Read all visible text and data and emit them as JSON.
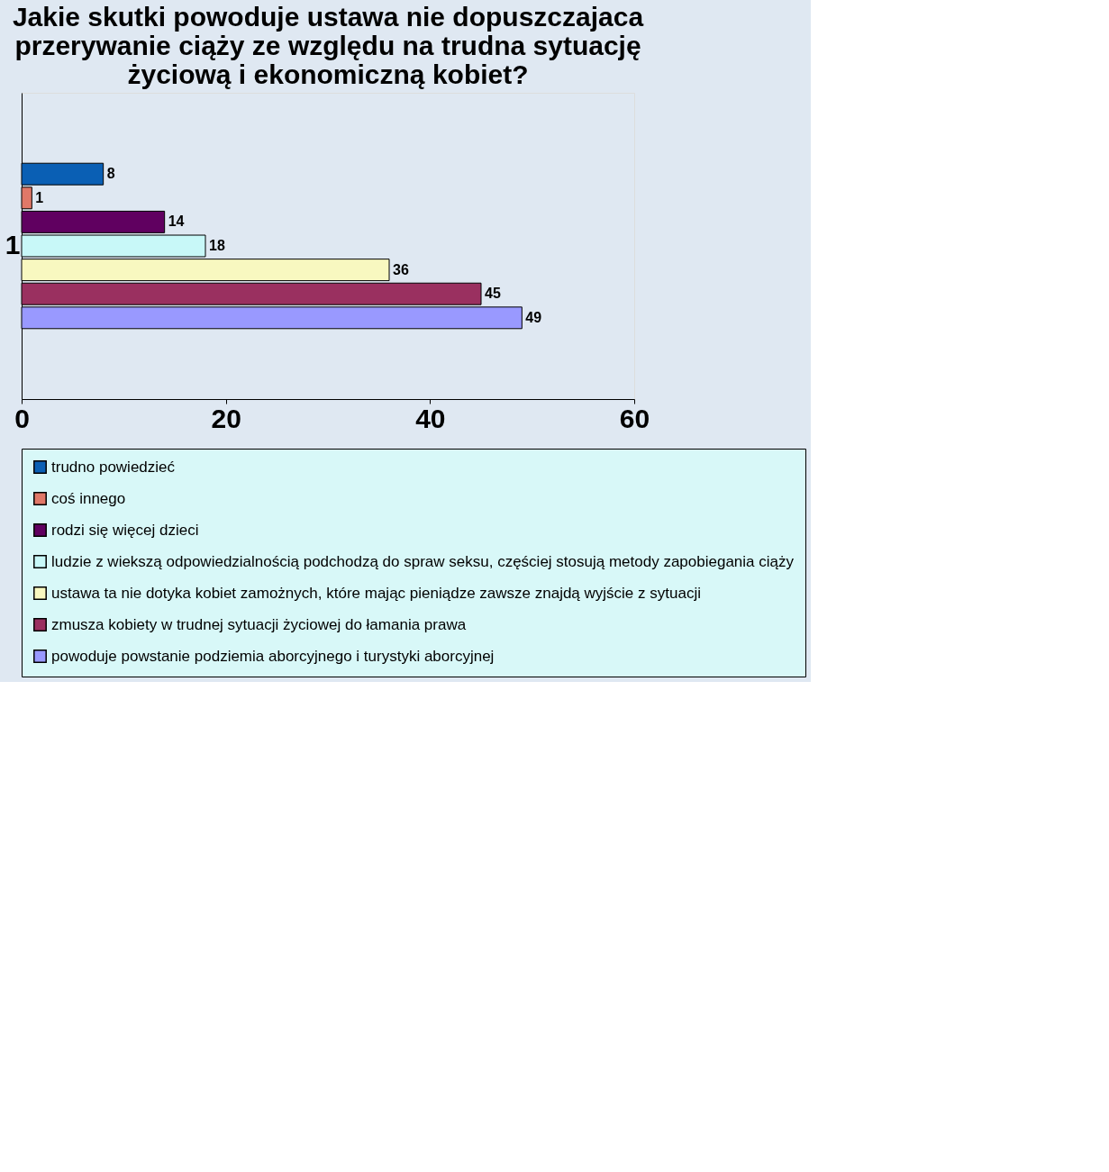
{
  "chart_data": {
    "type": "bar",
    "orientation": "horizontal",
    "title": "Jakie skutki powoduje ustawa nie dopuszczajaca przerywanie ciąży ze względu na trudna sytuację życiową i ekonomiczną kobiet?",
    "categories": [
      "1"
    ],
    "series": [
      {
        "name": "trudno powiedzieć",
        "color": "#0a5fb4",
        "values": [
          8
        ]
      },
      {
        "name": "coś innego",
        "color": "#e07868",
        "values": [
          1
        ]
      },
      {
        "name": "rodzi się więcej dzieci",
        "color": "#600060",
        "values": [
          14
        ]
      },
      {
        "name": "ludzie z wiekszą odpowiedzialnością podchodzą do spraw seksu, częściej stosują metody zapobiegania ciąży",
        "color": "#c8f8f8",
        "values": [
          18
        ]
      },
      {
        "name": "ustawa ta nie dotyka kobiet zamożnych, które mając pieniądze zawsze znajdą wyjście z sytuacji",
        "color": "#f8f8c0",
        "values": [
          36
        ]
      },
      {
        "name": "zmusza kobiety w trudnej sytuacji życiowej do łamania prawa",
        "color": "#9a3060",
        "values": [
          45
        ]
      },
      {
        "name": "powoduje powstanie podziemia aborcyjnego i turystyki aborcyjnej",
        "color": "#9999ff",
        "values": [
          49
        ]
      }
    ],
    "xlim": [
      0,
      60
    ],
    "xticks": [
      0,
      20,
      40,
      60
    ],
    "grid": false,
    "legend": "bottom",
    "data_labels": true
  }
}
